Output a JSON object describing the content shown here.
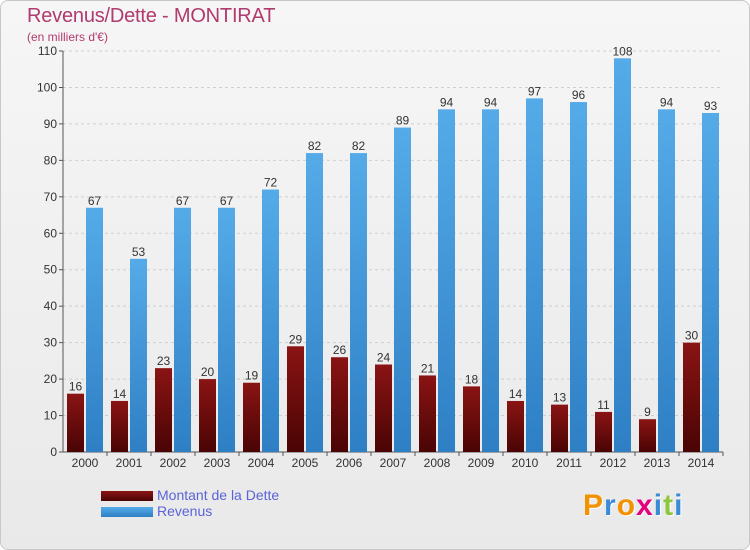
{
  "header": {
    "title": "Revenus/Dette - MONTIRAT",
    "subtitle": "(en milliers d'€)"
  },
  "legend": {
    "dette_label": "Montant de la Dette",
    "revenus_label": "Revenus"
  },
  "brand": {
    "name": "Proxiti",
    "letters": [
      "P",
      "r",
      "o",
      "x",
      "i",
      "t",
      "i"
    ],
    "letter_colors": [
      "#f29200",
      "#3b8ad8",
      "#f29200",
      "#e5007e",
      "#3b8ad8",
      "#8ec63f",
      "#3b8ad8"
    ]
  },
  "colors": {
    "dette": "#7a0f0f",
    "revenus": "#3b93dc",
    "title": "#b13a6e",
    "legend_text": "#5a63d8"
  },
  "chart_data": {
    "type": "bar",
    "title": "Revenus/Dette - MONTIRAT",
    "subtitle": "(en milliers d'€)",
    "categories": [
      "2000",
      "2001",
      "2002",
      "2003",
      "2004",
      "2005",
      "2006",
      "2007",
      "2008",
      "2009",
      "2010",
      "2011",
      "2012",
      "2013",
      "2014"
    ],
    "series": [
      {
        "name": "Montant de la Dette",
        "values": [
          16,
          14,
          23,
          20,
          19,
          29,
          26,
          24,
          21,
          18,
          14,
          13,
          11,
          9,
          30
        ]
      },
      {
        "name": "Revenus",
        "values": [
          67,
          53,
          67,
          67,
          72,
          82,
          82,
          89,
          94,
          94,
          97,
          96,
          108,
          94,
          93
        ]
      }
    ],
    "ylim": [
      0,
      110
    ],
    "yticks": [
      0,
      10,
      20,
      30,
      40,
      50,
      60,
      70,
      80,
      90,
      100,
      110
    ],
    "grid": true,
    "legend_position": "bottom-left"
  }
}
